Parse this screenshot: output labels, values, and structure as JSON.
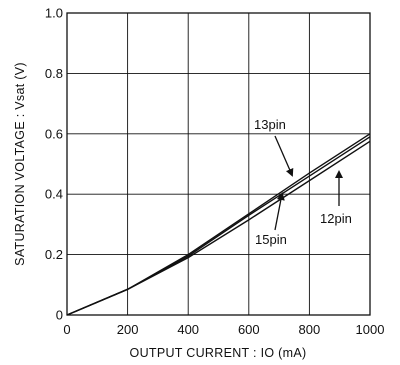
{
  "chart_data": {
    "type": "line",
    "title": "",
    "xlabel": "OUTPUT  CURRENT : IO  (mA)",
    "ylabel": "SATURATION VOLTAGE : Vsat  (V)",
    "xlim": [
      0,
      1000
    ],
    "ylim": [
      0,
      1.0
    ],
    "xticks": [
      "0",
      "200",
      "400",
      "600",
      "800",
      "1000"
    ],
    "yticks": [
      "0",
      "0.2",
      "0.4",
      "0.6",
      "0.8",
      "1.0"
    ],
    "grid": true,
    "legend": "callouts",
    "series": [
      {
        "name": "13pin",
        "x": [
          0,
          200,
          400,
          600,
          800,
          1000
        ],
        "y": [
          0,
          0.085,
          0.2,
          0.335,
          0.47,
          0.6
        ]
      },
      {
        "name": "15pin",
        "x": [
          0,
          200,
          400,
          600,
          800,
          1000
        ],
        "y": [
          0,
          0.085,
          0.195,
          0.33,
          0.46,
          0.59
        ]
      },
      {
        "name": "12pin",
        "x": [
          0,
          200,
          400,
          600,
          800,
          1000
        ],
        "y": [
          0,
          0.085,
          0.19,
          0.315,
          0.445,
          0.575
        ]
      }
    ]
  }
}
